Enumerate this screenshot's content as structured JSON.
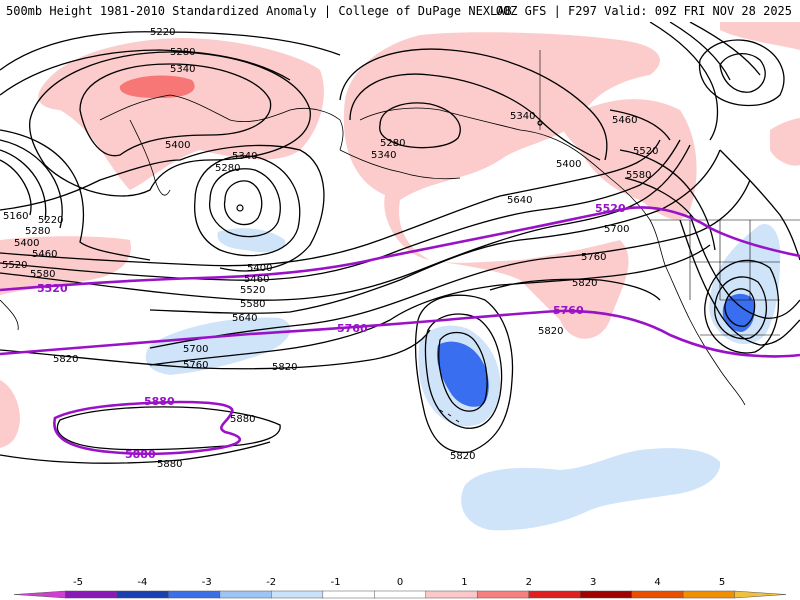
{
  "header": {
    "title_left": "500mb Height 1981-2010 Standardized Anomaly | College of DuPage NEXLAB",
    "title_right": "00Z GFS | F297 Valid: 09Z FRI NOV 28 2025"
  },
  "legend": {
    "ticks": [
      "-5",
      "-4",
      "-3",
      "-2",
      "-1",
      "0",
      "1",
      "2",
      "3",
      "4",
      "5"
    ],
    "colors": [
      "#d040d0",
      "#8a1ab8",
      "#1a3fb0",
      "#3b6fe8",
      "#9cc5f5",
      "#c9e1fa",
      "#ffffff",
      "#ffffff",
      "#fcc7c7",
      "#f77f7f",
      "#e02020",
      "#a00000",
      "#e85000",
      "#f09000",
      "#f0c040"
    ]
  },
  "map": {
    "anomaly_colors": {
      "neg1": "#cfe3f9",
      "neg2": "#3a6ef0",
      "pos1": "#fccbcb",
      "pos2": "#f77676"
    },
    "contour_color": "#000000",
    "highlight_color": "#9a12c8",
    "highlight_labels": [
      "5520",
      "5520",
      "5760",
      "5760",
      "5880",
      "5880"
    ],
    "contour_labels": [
      "5220",
      "5280",
      "5340",
      "5400",
      "5340",
      "5280",
      "5160",
      "5220",
      "5280",
      "5400",
      "5460",
      "5520",
      "5580",
      "5400",
      "5460",
      "5520",
      "5580",
      "5640",
      "5700",
      "5760",
      "5820",
      "5820",
      "5880",
      "5880",
      "5820",
      "5820",
      "5280",
      "5340",
      "5340",
      "5400",
      "5460",
      "5520",
      "5580",
      "5640",
      "5700",
      "5760",
      "5820"
    ]
  }
}
